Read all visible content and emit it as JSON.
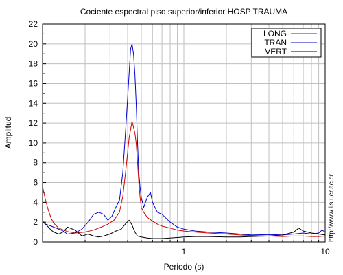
{
  "chart_data": {
    "type": "line",
    "title": "Cociente espectral piso superior/inferior  HOSP TRAUMA",
    "xlabel": "Periodo (s)",
    "ylabel": "Amplitud",
    "xscale": "log",
    "xlim": [
      0.1,
      10
    ],
    "ylim": [
      0,
      22
    ],
    "x_ticks": [
      {
        "value": 1,
        "label": "1"
      },
      {
        "value": 10,
        "label": "10"
      }
    ],
    "y_ticks": [
      {
        "value": 0,
        "label": "0"
      },
      {
        "value": 2,
        "label": "2"
      },
      {
        "value": 4,
        "label": "4"
      },
      {
        "value": 6,
        "label": "6"
      },
      {
        "value": 8,
        "label": "8"
      },
      {
        "value": 10,
        "label": "10"
      },
      {
        "value": 12,
        "label": "12"
      },
      {
        "value": 14,
        "label": "14"
      },
      {
        "value": 16,
        "label": "16"
      },
      {
        "value": 18,
        "label": "18"
      },
      {
        "value": 20,
        "label": "20"
      },
      {
        "value": 22,
        "label": "22"
      }
    ],
    "grid": true,
    "legend_position": "top-right",
    "series": [
      {
        "name": "LONG",
        "color": "#cc0000",
        "x": [
          0.1,
          0.105,
          0.11,
          0.115,
          0.12,
          0.13,
          0.15,
          0.17,
          0.2,
          0.23,
          0.26,
          0.29,
          0.32,
          0.35,
          0.37,
          0.39,
          0.41,
          0.43,
          0.45,
          0.46,
          0.47,
          0.48,
          0.49,
          0.5,
          0.52,
          0.55,
          0.6,
          0.65,
          0.7,
          0.8,
          0.9,
          1.0,
          1.2,
          1.5,
          2.0,
          2.5,
          3.0,
          4.0,
          5.0,
          6.0,
          7.0,
          8.0,
          9.0,
          10.0
        ],
        "y": [
          5.6,
          4.2,
          3.2,
          2.4,
          1.9,
          1.4,
          1.05,
          0.9,
          1.0,
          1.2,
          1.5,
          1.8,
          2.2,
          3.0,
          4.6,
          7.5,
          10.5,
          12.2,
          11.0,
          10.0,
          8.0,
          6.0,
          4.5,
          3.5,
          3.0,
          2.5,
          2.1,
          1.8,
          1.6,
          1.4,
          1.2,
          1.1,
          1.0,
          0.9,
          0.8,
          0.7,
          0.65,
          0.6,
          0.55,
          0.6,
          0.6,
          0.55,
          0.55,
          0.6
        ]
      },
      {
        "name": "TRAN",
        "color": "#0000cc",
        "x": [
          0.1,
          0.105,
          0.11,
          0.115,
          0.12,
          0.13,
          0.14,
          0.15,
          0.17,
          0.19,
          0.21,
          0.23,
          0.25,
          0.27,
          0.29,
          0.31,
          0.33,
          0.35,
          0.37,
          0.39,
          0.41,
          0.42,
          0.43,
          0.44,
          0.45,
          0.46,
          0.47,
          0.48,
          0.49,
          0.5,
          0.52,
          0.55,
          0.58,
          0.6,
          0.65,
          0.7,
          0.8,
          0.9,
          1.0,
          1.2,
          1.5,
          2.0,
          2.5,
          3.0,
          4.0,
          5.0,
          6.0,
          7.0,
          8.0,
          9.0,
          9.5,
          10.0
        ],
        "y": [
          2.0,
          1.8,
          1.7,
          1.6,
          1.5,
          1.3,
          1.1,
          0.8,
          0.9,
          1.3,
          2.0,
          2.8,
          3.0,
          2.8,
          2.2,
          2.6,
          3.5,
          4.2,
          7.0,
          12.0,
          17.0,
          19.5,
          20.0,
          19.0,
          17.0,
          14.0,
          10.0,
          7.0,
          5.5,
          4.5,
          3.5,
          4.5,
          5.0,
          4.0,
          3.0,
          2.8,
          2.0,
          1.5,
          1.3,
          1.1,
          1.0,
          0.9,
          0.8,
          0.7,
          0.75,
          0.7,
          0.8,
          0.9,
          0.8,
          0.9,
          1.2,
          1.0
        ]
      },
      {
        "name": "VERT",
        "color": "#000000",
        "x": [
          0.1,
          0.105,
          0.11,
          0.115,
          0.12,
          0.13,
          0.14,
          0.15,
          0.17,
          0.19,
          0.21,
          0.23,
          0.25,
          0.27,
          0.3,
          0.33,
          0.36,
          0.39,
          0.41,
          0.43,
          0.45,
          0.47,
          0.5,
          0.55,
          0.6,
          0.7,
          0.8,
          0.9,
          1.0,
          1.2,
          1.5,
          2.0,
          2.5,
          3.0,
          4.0,
          5.0,
          6.0,
          6.5,
          7.0,
          8.0,
          9.0,
          10.0
        ],
        "y": [
          2.1,
          1.8,
          1.5,
          1.2,
          1.0,
          0.8,
          1.0,
          1.5,
          1.2,
          0.6,
          0.8,
          0.6,
          0.5,
          0.6,
          0.8,
          1.1,
          1.3,
          1.9,
          2.2,
          1.7,
          1.0,
          0.6,
          0.5,
          0.4,
          0.35,
          0.35,
          0.4,
          0.45,
          0.5,
          0.55,
          0.55,
          0.5,
          0.5,
          0.55,
          0.6,
          0.7,
          1.0,
          1.4,
          1.1,
          0.9,
          0.8,
          0.7
        ]
      }
    ]
  },
  "credit": "http://www.lis.ucr.ac.cr"
}
